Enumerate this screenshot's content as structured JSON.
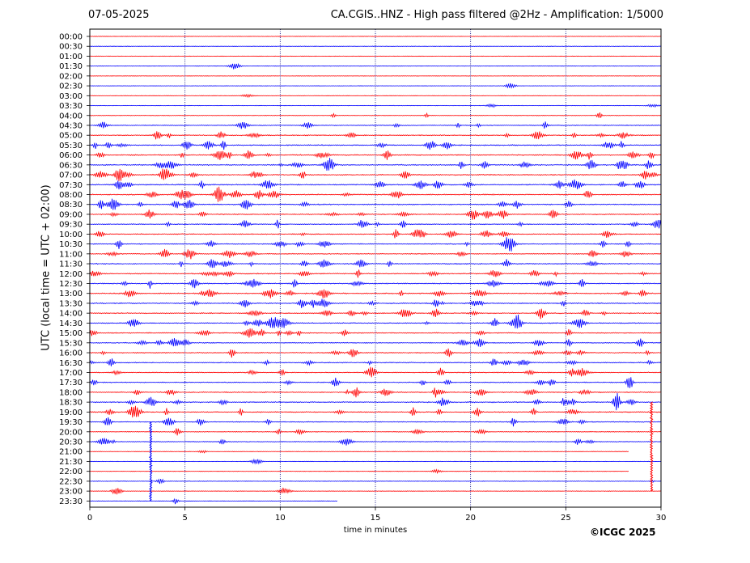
{
  "header": {
    "date": "07-05-2025",
    "title": "CA.CGIS..HNZ - High pass filtered @2Hz - Amplification: 1/5000"
  },
  "footer": {
    "copyright": "©ICGC 2025"
  },
  "colors": {
    "trace_a": "#ff0000",
    "trace_b": "#0000ff",
    "grid": "#000080",
    "frame": "#000000"
  },
  "chart_data": {
    "type": "line",
    "title": "CA.CGIS..HNZ - High pass filtered @2Hz - Amplification: 1/5000",
    "xlabel": "time in minutes",
    "ylabel": "UTC (local time = UTC + 02:00)",
    "xlim": [
      0,
      30
    ],
    "xticks": [
      0,
      5,
      10,
      15,
      20,
      25,
      30
    ],
    "grid": "vertical dotted lines at x = 5, 10, 15, 20, 25",
    "row_labels": [
      "00:00",
      "00:30",
      "01:00",
      "01:30",
      "02:00",
      "02:30",
      "03:00",
      "03:30",
      "04:00",
      "04:30",
      "05:00",
      "05:30",
      "06:00",
      "06:30",
      "07:00",
      "07:30",
      "08:00",
      "08:30",
      "09:00",
      "09:30",
      "10:00",
      "10:30",
      "11:00",
      "11:30",
      "12:00",
      "12:30",
      "13:00",
      "13:30",
      "14:00",
      "14:30",
      "15:00",
      "15:30",
      "16:00",
      "16:30",
      "17:00",
      "17:30",
      "18:00",
      "18:30",
      "19:00",
      "19:30",
      "20:00",
      "20:30",
      "21:00",
      "21:30",
      "22:00",
      "22:30",
      "23:00",
      "23:30"
    ],
    "row_colors": [
      "red",
      "blue"
    ],
    "activity": [
      0.01,
      0.02,
      0.02,
      0.03,
      0.02,
      0.03,
      0.05,
      0.08,
      0.15,
      0.3,
      0.45,
      0.55,
      0.6,
      0.6,
      0.6,
      0.55,
      0.55,
      0.55,
      0.5,
      0.4,
      0.45,
      0.45,
      0.45,
      0.5,
      0.5,
      0.5,
      0.55,
      0.55,
      0.5,
      0.5,
      0.5,
      0.45,
      0.45,
      0.45,
      0.4,
      0.4,
      0.5,
      0.55,
      0.5,
      0.4,
      0.3,
      0.25,
      0.05,
      0.05,
      0.03,
      0.1,
      0.08,
      0.05
    ],
    "row_end_minutes": {
      "21:00": 28.3,
      "22:00": 28.3,
      "23:30": 13.0
    },
    "special_events": [
      {
        "rows": [
          "19:30",
          "23:30"
        ],
        "minute": 3.2,
        "color": "blue"
      },
      {
        "rows": [
          "18:30",
          "23:00"
        ],
        "minute": 29.5,
        "color": "red"
      }
    ]
  }
}
